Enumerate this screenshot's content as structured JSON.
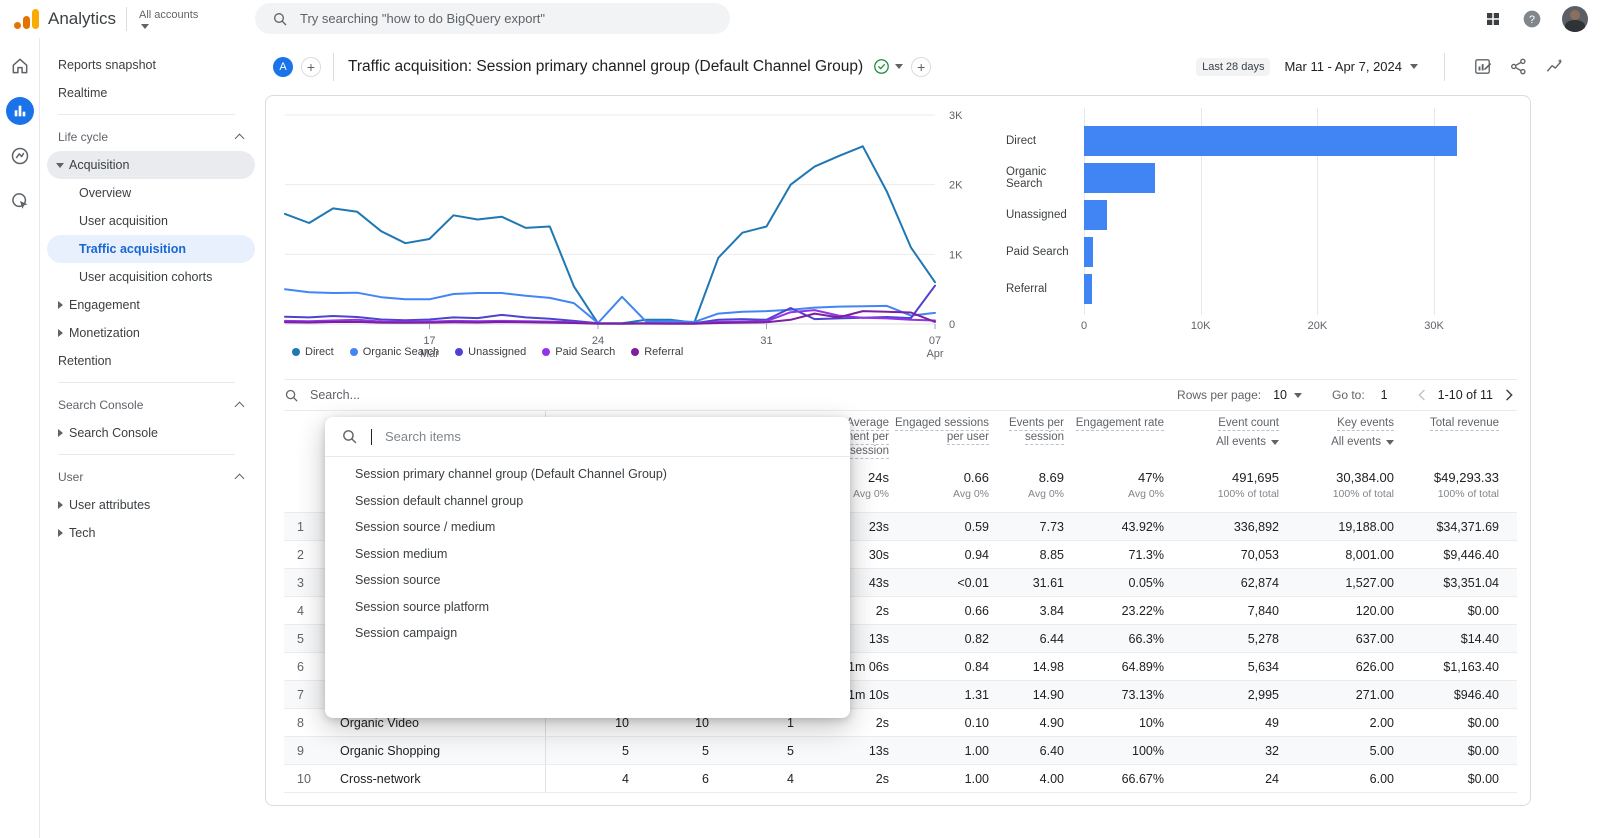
{
  "topbar": {
    "product": "Analytics",
    "accounts_label": "All accounts",
    "search_placeholder": "Try searching \"how to do BigQuery export\""
  },
  "report_header": {
    "avatar_letter": "A",
    "title": "Traffic acquisition: Session primary channel group (Default Channel Group)",
    "date_preset": "Last 28 days",
    "date_range": "Mar 11 - Apr 7, 2024"
  },
  "sidebar": {
    "items": [
      {
        "type": "item",
        "label": "Reports snapshot",
        "indent": 0
      },
      {
        "type": "item",
        "label": "Realtime",
        "indent": 0
      },
      {
        "type": "divider"
      },
      {
        "type": "section",
        "label": "Life cycle"
      },
      {
        "type": "item",
        "label": "Acquisition",
        "indent": 1,
        "arrow": "down",
        "pill": true
      },
      {
        "type": "item",
        "label": "Overview",
        "indent": 2
      },
      {
        "type": "item",
        "label": "User acquisition",
        "indent": 2
      },
      {
        "type": "item",
        "label": "Traffic acquisition",
        "indent": 2,
        "selected": true
      },
      {
        "type": "item",
        "label": "User acquisition cohorts",
        "indent": 2
      },
      {
        "type": "item",
        "label": "Engagement",
        "indent": 1,
        "arrow": "right"
      },
      {
        "type": "item",
        "label": "Monetization",
        "indent": 1,
        "arrow": "right"
      },
      {
        "type": "item",
        "label": "Retention",
        "indent": 1
      },
      {
        "type": "divider"
      },
      {
        "type": "section",
        "label": "Search Console"
      },
      {
        "type": "item",
        "label": "Search Console",
        "indent": 1,
        "arrow": "right"
      },
      {
        "type": "divider"
      },
      {
        "type": "section",
        "label": "User"
      },
      {
        "type": "item",
        "label": "User attributes",
        "indent": 1,
        "arrow": "right"
      },
      {
        "type": "item",
        "label": "Tech",
        "indent": 1,
        "arrow": "right"
      }
    ]
  },
  "chart_data": [
    {
      "type": "line",
      "title": "",
      "x_start": "Mar 11",
      "x_end": "Apr 7",
      "x_ticks": [
        {
          "index": 6,
          "label": "17",
          "sublabel": "Mar"
        },
        {
          "index": 13,
          "label": "24",
          "sublabel": ""
        },
        {
          "index": 20,
          "label": "31",
          "sublabel": ""
        },
        {
          "index": 27,
          "label": "07",
          "sublabel": "Apr"
        }
      ],
      "ylim": [
        0,
        3000
      ],
      "y_ticks": [
        {
          "value": 0,
          "label": "0"
        },
        {
          "value": 1000,
          "label": "1K"
        },
        {
          "value": 2000,
          "label": "2K"
        },
        {
          "value": 3000,
          "label": "3K"
        }
      ],
      "series": [
        {
          "name": "Direct",
          "color": "#1f77b4",
          "values": [
            1580,
            1450,
            1660,
            1610,
            1330,
            1160,
            1220,
            1560,
            1500,
            1540,
            1380,
            1400,
            540,
            10,
            10,
            60,
            60,
            20,
            950,
            1310,
            1400,
            2000,
            2260,
            2410,
            2550,
            1900,
            1100,
            600
          ]
        },
        {
          "name": "Organic Search",
          "color": "#4285f4",
          "values": [
            500,
            455,
            445,
            450,
            385,
            355,
            355,
            430,
            445,
            445,
            405,
            375,
            300,
            15,
            390,
            35,
            40,
            30,
            150,
            175,
            185,
            205,
            235,
            250,
            255,
            260,
            120,
            160
          ]
        },
        {
          "name": "Unassigned",
          "color": "#4d43cf",
          "values": [
            105,
            95,
            115,
            100,
            65,
            55,
            65,
            95,
            85,
            130,
            95,
            75,
            45,
            10,
            8,
            12,
            10,
            10,
            60,
            70,
            60,
            230,
            70,
            80,
            90,
            100,
            85,
            550
          ]
        },
        {
          "name": "Paid Search",
          "color": "#9334e6",
          "values": [
            45,
            40,
            50,
            62,
            35,
            30,
            35,
            45,
            40,
            45,
            40,
            35,
            25,
            8,
            6,
            8,
            8,
            6,
            30,
            35,
            40,
            170,
            200,
            120,
            90,
            80,
            60,
            50
          ]
        },
        {
          "name": "Referral",
          "color": "#7c1fa0",
          "values": [
            25,
            22,
            28,
            30,
            20,
            18,
            20,
            25,
            22,
            28,
            25,
            20,
            15,
            5,
            5,
            6,
            5,
            5,
            15,
            20,
            25,
            60,
            150,
            95,
            185,
            175,
            165,
            30
          ]
        }
      ]
    },
    {
      "type": "bar",
      "orientation": "horizontal",
      "title": "",
      "categories": [
        "Direct",
        "Organic Search",
        "Unassigned",
        "Paid Search",
        "Referral"
      ],
      "values": [
        32000,
        6100,
        2000,
        780,
        650
      ],
      "bar_color": "#4184f3",
      "xlim": [
        0,
        35000
      ],
      "x_ticks": [
        {
          "value": 0,
          "label": "0"
        },
        {
          "value": 10000,
          "label": "10K"
        },
        {
          "value": 20000,
          "label": "20K"
        },
        {
          "value": 30000,
          "label": "30K"
        }
      ]
    }
  ],
  "table": {
    "search_placeholder": "Search...",
    "pagination": {
      "rows_per_page_label": "Rows per page:",
      "rows_per_page_value": "10",
      "goto_label": "Go to:",
      "goto_value": "1",
      "range_text": "1-10 of 11"
    },
    "columns": [
      {
        "key": "num",
        "label": ""
      },
      {
        "key": "channel",
        "label": ""
      },
      {
        "key": "users",
        "label": ""
      },
      {
        "key": "sessions",
        "label": ""
      },
      {
        "key": "engaged",
        "label": ""
      },
      {
        "key": "avg",
        "label": "Average engagement per session"
      },
      {
        "key": "espu",
        "label": "Engaged sessions per user"
      },
      {
        "key": "eps",
        "label": "Events per session"
      },
      {
        "key": "rate",
        "label": "Engagement rate"
      },
      {
        "key": "events",
        "label": "Event count",
        "filter": "All events"
      },
      {
        "key": "key",
        "label": "Key events",
        "filter": "All events"
      },
      {
        "key": "revenue",
        "label": "Total revenue"
      }
    ],
    "totals": {
      "avg": {
        "value": "24s",
        "sub": "Avg 0%"
      },
      "espu": {
        "value": "0.66",
        "sub": "Avg 0%"
      },
      "eps": {
        "value": "8.69",
        "sub": "Avg 0%"
      },
      "rate": {
        "value": "47%",
        "sub": "Avg 0%"
      },
      "events": {
        "value": "491,695",
        "sub": "100% of total"
      },
      "key": {
        "value": "30,384.00",
        "sub": "100% of total"
      },
      "revenue": {
        "value": "$49,293.33",
        "sub": "100% of total"
      }
    },
    "rows": [
      {
        "num": "1",
        "channel": "",
        "users": "",
        "sessions": "",
        "engaged": "",
        "avg": "23s",
        "espu": "0.59",
        "eps": "7.73",
        "rate": "43.92%",
        "events": "336,892",
        "key": "19,188.00",
        "revenue": "$34,371.69"
      },
      {
        "num": "2",
        "channel": "",
        "users": "",
        "sessions": "",
        "engaged": "",
        "avg": "30s",
        "espu": "0.94",
        "eps": "8.85",
        "rate": "71.3%",
        "events": "70,053",
        "key": "8,001.00",
        "revenue": "$9,446.40"
      },
      {
        "num": "3",
        "channel": "",
        "users": "",
        "sessions": "",
        "engaged": "",
        "avg": "43s",
        "espu": "<0.01",
        "eps": "31.61",
        "rate": "0.05%",
        "events": "62,874",
        "key": "1,527.00",
        "revenue": "$3,351.04"
      },
      {
        "num": "4",
        "channel": "",
        "users": "",
        "sessions": "",
        "engaged": "",
        "avg": "2s",
        "espu": "0.66",
        "eps": "3.84",
        "rate": "23.22%",
        "events": "7,840",
        "key": "120.00",
        "revenue": "$0.00"
      },
      {
        "num": "5",
        "channel": "",
        "users": "",
        "sessions": "",
        "engaged": "",
        "avg": "13s",
        "espu": "0.82",
        "eps": "6.44",
        "rate": "66.3%",
        "events": "5,278",
        "key": "637.00",
        "revenue": "$14.40"
      },
      {
        "num": "6",
        "channel": "",
        "users": "",
        "sessions": "",
        "engaged": "",
        "avg": "1m 06s",
        "espu": "0.84",
        "eps": "14.98",
        "rate": "64.89%",
        "events": "5,634",
        "key": "626.00",
        "revenue": "$1,163.40"
      },
      {
        "num": "7",
        "channel": "",
        "users": "",
        "sessions": "",
        "engaged": "",
        "avg": "1m 10s",
        "espu": "1.31",
        "eps": "14.90",
        "rate": "73.13%",
        "events": "2,995",
        "key": "271.00",
        "revenue": "$946.40"
      },
      {
        "num": "8",
        "channel": "Organic Video",
        "users": "10",
        "sessions": "10",
        "engaged": "1",
        "avg": "2s",
        "espu": "0.10",
        "eps": "4.90",
        "rate": "10%",
        "events": "49",
        "key": "2.00",
        "revenue": "$0.00"
      },
      {
        "num": "9",
        "channel": "Organic Shopping",
        "users": "5",
        "sessions": "5",
        "engaged": "5",
        "avg": "13s",
        "espu": "1.00",
        "eps": "6.40",
        "rate": "100%",
        "events": "32",
        "key": "5.00",
        "revenue": "$0.00"
      },
      {
        "num": "10",
        "channel": "Cross-network",
        "users": "4",
        "sessions": "6",
        "engaged": "4",
        "avg": "2s",
        "espu": "1.00",
        "eps": "4.00",
        "rate": "66.67%",
        "events": "24",
        "key": "6.00",
        "revenue": "$0.00"
      }
    ]
  },
  "dimension_picker": {
    "search_placeholder": "Search items",
    "items": [
      "Session primary channel group (Default Channel Group)",
      "Session default channel group",
      "Session source / medium",
      "Session medium",
      "Session source",
      "Session source platform",
      "Session campaign"
    ]
  },
  "colors": {
    "accent": "#1a73e8",
    "selected_nav_bg": "#e8f0fe",
    "selected_nav_text": "#1967d2",
    "bar": "#4184f3",
    "success_green": "#1e8e3e"
  }
}
